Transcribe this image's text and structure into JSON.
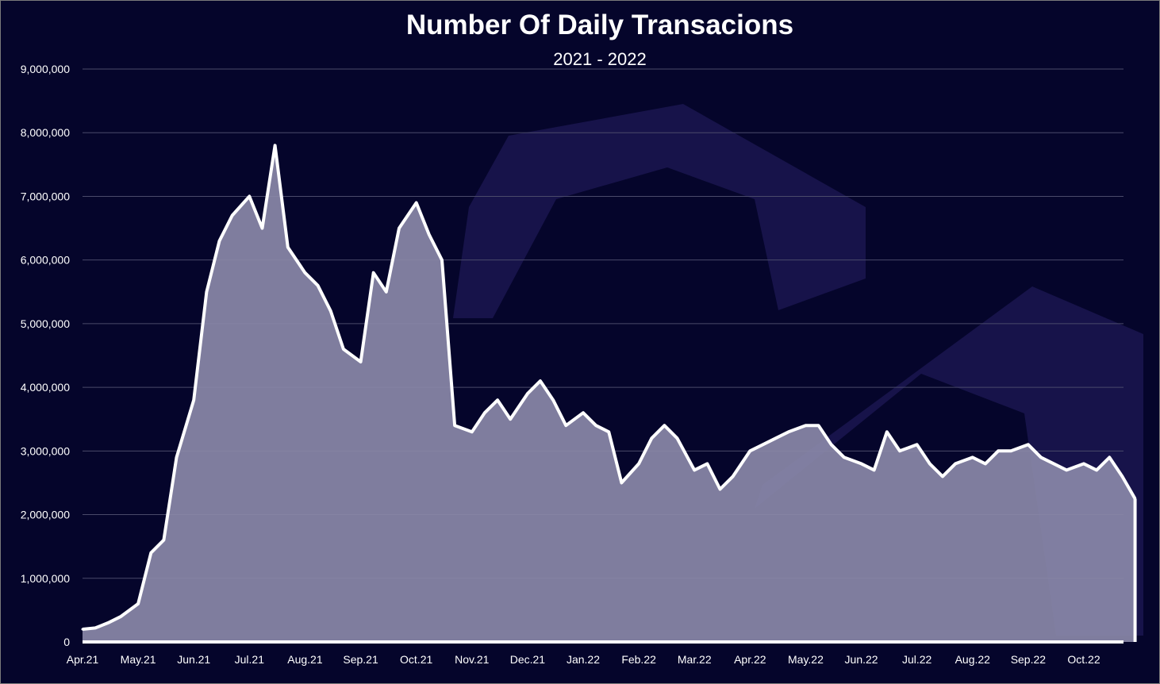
{
  "chart_data": {
    "type": "area",
    "title": "Number Of Daily Transacions",
    "subtitle": "2021 - 2022",
    "xlabel": "",
    "ylabel": "",
    "ylim": [
      0,
      9000000
    ],
    "y_ticks": [
      "0",
      "1,000,000",
      "2,000,000",
      "3,000,000",
      "4,000,000",
      "5,000,000",
      "6,000,000",
      "7,000,000",
      "8,000,000",
      "9,000,000"
    ],
    "x_ticks": [
      "Apr.21",
      "May.21",
      "Jun.21",
      "Jul.21",
      "Aug.21",
      "Sep.21",
      "Oct.21",
      "Nov.21",
      "Dec.21",
      "Jan.22",
      "Feb.22",
      "Mar.22",
      "Apr.22",
      "May.22",
      "Jun.22",
      "Jul.22",
      "Aug.22",
      "Sep.22",
      "Oct.22"
    ],
    "grid": true,
    "legend": "none",
    "colors": {
      "background": "#05052b",
      "line": "#ffffff",
      "fill": "#8a88a8",
      "grid": "#4a4a6a",
      "watermark": "#1e1a52"
    },
    "series": [
      {
        "x": [
          "Apr.21",
          "Apr.21+7",
          "Apr.21+14",
          "Apr.21+21",
          "May.21",
          "May.21+7",
          "May.21+14",
          "May.21+21",
          "Jun.21",
          "Jun.21+7",
          "Jun.21+14",
          "Jun.21+21",
          "Jul.21",
          "Jul.21+7",
          "Jul.21+14",
          "Jul.21+21",
          "Aug.21",
          "Aug.21+7",
          "Aug.21+14",
          "Aug.21+21",
          "Sep.21",
          "Sep.21+7",
          "Sep.21+14",
          "Sep.21+21",
          "Oct.21",
          "Oct.21+7",
          "Oct.21+14",
          "Oct.21+21",
          "Nov.21",
          "Nov.21+7",
          "Nov.21+14",
          "Nov.21+21",
          "Dec.21",
          "Dec.21+7",
          "Dec.21+14",
          "Dec.21+21",
          "Jan.22",
          "Jan.22+7",
          "Jan.22+14",
          "Jan.22+21",
          "Feb.22",
          "Feb.22+7",
          "Feb.22+14",
          "Feb.22+21",
          "Mar.22",
          "Mar.22+7",
          "Mar.22+14",
          "Mar.22+21",
          "Apr.22",
          "Apr.22+7",
          "Apr.22+14",
          "Apr.22+21",
          "May.22",
          "May.22+7",
          "May.22+14",
          "May.22+21",
          "Jun.22",
          "Jun.22+7",
          "Jun.22+14",
          "Jun.22+21",
          "Jul.22",
          "Jul.22+7",
          "Jul.22+14",
          "Jul.22+21",
          "Aug.22",
          "Aug.22+7",
          "Aug.22+14",
          "Aug.22+21",
          "Sep.22",
          "Sep.22+7",
          "Sep.22+14",
          "Sep.22+21",
          "Oct.22",
          "Oct.22+7",
          "Oct.22+14",
          "Oct.22+21",
          "Oct.22+28"
        ],
        "values": [
          200000,
          220000,
          300000,
          400000,
          600000,
          1400000,
          1600000,
          2900000,
          3800000,
          5500000,
          6300000,
          6700000,
          7000000,
          6500000,
          7800000,
          6200000,
          5800000,
          5600000,
          5200000,
          4600000,
          4400000,
          5800000,
          5500000,
          6500000,
          6900000,
          6400000,
          6000000,
          3400000,
          3300000,
          3600000,
          3800000,
          3500000,
          3900000,
          4100000,
          3800000,
          3400000,
          3600000,
          3400000,
          3300000,
          2500000,
          2800000,
          3200000,
          3400000,
          3200000,
          2700000,
          2800000,
          2400000,
          2600000,
          3000000,
          3100000,
          3200000,
          3300000,
          3400000,
          3400000,
          3100000,
          2900000,
          2800000,
          2700000,
          3300000,
          3000000,
          3100000,
          2800000,
          2600000,
          2800000,
          2900000,
          2800000,
          3000000,
          3000000,
          3100000,
          2900000,
          2800000,
          2700000,
          2800000,
          2700000,
          2900000,
          2600000,
          2250000
        ]
      }
    ]
  }
}
